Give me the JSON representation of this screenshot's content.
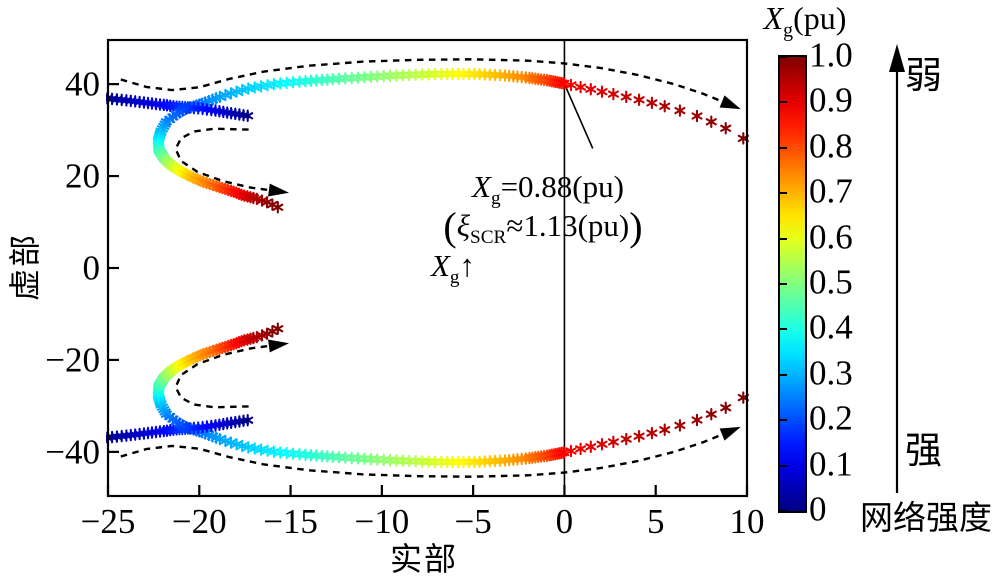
{
  "axes": {
    "xlabel": "实部",
    "ylabel": "虚部"
  },
  "annotation": {
    "var": "X",
    "var_sub": "g",
    "line1_rest": "=0.88(pu)",
    "paren_open": "(",
    "xi": "ξ",
    "xi_sub": "SCR",
    "line2_rest": "≈1.13(pu)",
    "paren_close": ")"
  },
  "xg_direction": {
    "var": "X",
    "sub": "g",
    "arrow": "↑"
  },
  "colorbar": {
    "title_var": "X",
    "title_sub": "g",
    "title_rest": "(pu)",
    "min": 0,
    "max": 1,
    "colormap": "jet",
    "tick_values": [
      1.0,
      0.9,
      0.8,
      0.7,
      0.6,
      0.5,
      0.4,
      0.3,
      0.2,
      0.1,
      0
    ],
    "tick_labels": [
      "1.0",
      "0.9",
      "0.8",
      "0.7",
      "0.6",
      "0.5",
      "0.4",
      "0.3",
      "0.2",
      "0.1",
      "0"
    ]
  },
  "strength": {
    "weak": "弱",
    "strong": "强",
    "label": "网络强度"
  },
  "chart_data": {
    "type": "scatter",
    "title": "",
    "xlabel": "实部",
    "ylabel": "虚部",
    "xlim": [
      -25,
      10
    ],
    "ylim": [
      -49.6,
      49.6
    ],
    "x_ticks": [
      -25,
      -20,
      -15,
      -10,
      -5,
      0,
      5,
      10
    ],
    "x_tick_labels": [
      "−25",
      "−20",
      "−15",
      "−10",
      "−5",
      "0",
      "5",
      "10"
    ],
    "y_ticks": [
      40,
      20,
      0,
      -20,
      -40
    ],
    "y_tick_labels": [
      "40",
      "20",
      "0",
      "−20",
      "−40"
    ],
    "grid": false,
    "marker": "asterisk",
    "colormap": "jet",
    "color_parameter": "Xg (pu) from 0 to 1",
    "zero_axis_line_x": 0,
    "stability_crossing": {
      "x": 0,
      "y": 40.1,
      "xg": 0.88
    },
    "series": [
      {
        "name": "upper-long-branch",
        "n_markers": 115,
        "points": [
          [
            -25.3,
            37.0,
            0
          ],
          [
            -24.1,
            36.5,
            0.04
          ],
          [
            -23.0,
            36.0,
            0.08
          ],
          [
            -22.0,
            35.5,
            0.12
          ],
          [
            -21.2,
            35.1,
            0.16
          ],
          [
            -20.5,
            34.9,
            0.2
          ],
          [
            -19.8,
            35.8,
            0.24
          ],
          [
            -18.9,
            37.2,
            0.28
          ],
          [
            -17.5,
            38.9,
            0.32
          ],
          [
            -15.9,
            40.0,
            0.36
          ],
          [
            -14.3,
            40.6,
            0.4
          ],
          [
            -12.6,
            41.1,
            0.45
          ],
          [
            -10.6,
            41.6,
            0.5
          ],
          [
            -8.6,
            42.0,
            0.55
          ],
          [
            -6.6,
            42.2,
            0.6
          ],
          [
            -4.9,
            42.2,
            0.65
          ],
          [
            -3.3,
            41.9,
            0.7
          ],
          [
            -2.0,
            41.4,
            0.75
          ],
          [
            -0.9,
            40.8,
            0.81
          ],
          [
            0,
            40.1,
            0.88
          ],
          [
            1.2,
            39.1,
            0.9
          ],
          [
            2.6,
            37.9,
            0.92
          ],
          [
            4.2,
            36.5,
            0.94
          ],
          [
            5.8,
            34.9,
            0.96
          ],
          [
            7.4,
            32.9,
            0.975
          ],
          [
            8.7,
            30.7,
            0.99
          ],
          [
            9.8,
            28.2,
            1
          ]
        ]
      },
      {
        "name": "upper-c-branch",
        "n_markers": 85,
        "points": [
          [
            -17.35,
            33.1,
            0
          ],
          [
            -18.3,
            33.7,
            0.05
          ],
          [
            -19.2,
            34.3,
            0.1
          ],
          [
            -20.0,
            34.7,
            0.14
          ],
          [
            -20.6,
            34.9,
            0.17
          ],
          [
            -21.2,
            33.6,
            0.21
          ],
          [
            -21.8,
            31.8,
            0.25
          ],
          [
            -22.1,
            29.7,
            0.3
          ],
          [
            -22.25,
            27.6,
            0.36
          ],
          [
            -22.2,
            25.6,
            0.43
          ],
          [
            -21.9,
            23.7,
            0.5
          ],
          [
            -21.4,
            21.9,
            0.58
          ],
          [
            -20.7,
            20.3,
            0.66
          ],
          [
            -19.9,
            18.9,
            0.73
          ],
          [
            -19.0,
            17.7,
            0.79
          ],
          [
            -18.2,
            16.7,
            0.85
          ],
          [
            -17.6,
            15.8,
            0.9
          ],
          [
            -16.9,
            15.1,
            0.95
          ],
          [
            -16.2,
            14.2,
            0.98
          ],
          [
            -15.7,
            13.2,
            1
          ]
        ]
      },
      {
        "name": "lower-long-branch",
        "n_markers": 115,
        "points": [
          [
            -25.3,
            -37.0,
            0
          ],
          [
            -24.1,
            -36.5,
            0.04
          ],
          [
            -23.0,
            -36.0,
            0.08
          ],
          [
            -22.0,
            -35.5,
            0.12
          ],
          [
            -21.2,
            -35.1,
            0.16
          ],
          [
            -20.5,
            -34.9,
            0.2
          ],
          [
            -19.8,
            -35.8,
            0.24
          ],
          [
            -18.9,
            -37.2,
            0.28
          ],
          [
            -17.5,
            -38.9,
            0.32
          ],
          [
            -15.9,
            -40.0,
            0.36
          ],
          [
            -14.3,
            -40.6,
            0.4
          ],
          [
            -12.6,
            -41.1,
            0.45
          ],
          [
            -10.6,
            -41.6,
            0.5
          ],
          [
            -8.6,
            -42.0,
            0.55
          ],
          [
            -6.6,
            -42.2,
            0.6
          ],
          [
            -4.9,
            -42.2,
            0.65
          ],
          [
            -3.3,
            -41.9,
            0.7
          ],
          [
            -2.0,
            -41.4,
            0.75
          ],
          [
            -0.9,
            -40.8,
            0.81
          ],
          [
            0,
            -40.1,
            0.88
          ],
          [
            1.2,
            -39.1,
            0.9
          ],
          [
            2.6,
            -37.9,
            0.92
          ],
          [
            4.2,
            -36.5,
            0.94
          ],
          [
            5.8,
            -34.9,
            0.96
          ],
          [
            7.4,
            -32.9,
            0.975
          ],
          [
            8.7,
            -30.7,
            0.99
          ],
          [
            9.8,
            -28.2,
            1
          ]
        ]
      },
      {
        "name": "lower-c-branch",
        "n_markers": 85,
        "points": [
          [
            -17.35,
            -33.1,
            0
          ],
          [
            -18.3,
            -33.7,
            0.05
          ],
          [
            -19.2,
            -34.3,
            0.1
          ],
          [
            -20.0,
            -34.7,
            0.14
          ],
          [
            -20.6,
            -34.9,
            0.17
          ],
          [
            -21.2,
            -33.6,
            0.21
          ],
          [
            -21.8,
            -31.8,
            0.25
          ],
          [
            -22.1,
            -29.7,
            0.3
          ],
          [
            -22.25,
            -27.6,
            0.36
          ],
          [
            -22.2,
            -25.6,
            0.43
          ],
          [
            -21.9,
            -23.7,
            0.5
          ],
          [
            -21.4,
            -21.9,
            0.58
          ],
          [
            -20.7,
            -20.3,
            0.66
          ],
          [
            -19.9,
            -18.9,
            0.73
          ],
          [
            -19.0,
            -17.7,
            0.79
          ],
          [
            -18.2,
            -16.7,
            0.85
          ],
          [
            -17.6,
            -15.8,
            0.9
          ],
          [
            -16.9,
            -15.1,
            0.95
          ],
          [
            -16.2,
            -14.2,
            0.98
          ],
          [
            -15.7,
            -13.2,
            1
          ]
        ]
      }
    ],
    "guide_arrows": [
      {
        "name": "upper-outer",
        "points": [
          [
            -24.3,
            41.0
          ],
          [
            -22.9,
            39.4
          ],
          [
            -21.5,
            38.7
          ],
          [
            -20.0,
            39.3
          ],
          [
            -18.4,
            41.1
          ],
          [
            -16.5,
            42.7
          ],
          [
            -14.0,
            44.0
          ],
          [
            -11.0,
            44.9
          ],
          [
            -8.0,
            45.3
          ],
          [
            -5.0,
            45.4
          ],
          [
            -2.0,
            45.1
          ],
          [
            0.0,
            44.5
          ],
          [
            2.0,
            43.5
          ],
          [
            4.0,
            42.0
          ],
          [
            6.0,
            40.0
          ],
          [
            7.6,
            37.9
          ],
          [
            8.9,
            35.8
          ]
        ]
      },
      {
        "name": "upper-inner",
        "points": [
          [
            -17.3,
            30.1
          ],
          [
            -19.2,
            30.3
          ],
          [
            -20.3,
            29.7
          ],
          [
            -21.0,
            28.2
          ],
          [
            -21.3,
            25.9
          ],
          [
            -21.0,
            23.3
          ],
          [
            -20.1,
            20.9
          ],
          [
            -18.7,
            18.9
          ],
          [
            -17.2,
            17.5
          ],
          [
            -15.9,
            16.8
          ]
        ]
      },
      {
        "name": "lower-outer",
        "points": [
          [
            -24.3,
            -41.0
          ],
          [
            -22.9,
            -39.4
          ],
          [
            -21.5,
            -38.7
          ],
          [
            -20.0,
            -39.3
          ],
          [
            -18.4,
            -41.1
          ],
          [
            -16.5,
            -42.7
          ],
          [
            -14.0,
            -44.0
          ],
          [
            -11.0,
            -44.9
          ],
          [
            -8.0,
            -45.3
          ],
          [
            -5.0,
            -45.4
          ],
          [
            -2.0,
            -45.1
          ],
          [
            0.0,
            -44.5
          ],
          [
            2.0,
            -43.5
          ],
          [
            4.0,
            -42.0
          ],
          [
            6.0,
            -40.0
          ],
          [
            7.6,
            -37.9
          ],
          [
            8.9,
            -35.8
          ]
        ]
      },
      {
        "name": "lower-inner",
        "points": [
          [
            -17.3,
            -30.1
          ],
          [
            -19.2,
            -30.3
          ],
          [
            -20.3,
            -29.7
          ],
          [
            -21.0,
            -28.2
          ],
          [
            -21.3,
            -25.9
          ],
          [
            -21.0,
            -23.3
          ],
          [
            -20.1,
            -20.9
          ],
          [
            -18.7,
            -18.9
          ],
          [
            -17.2,
            -17.5
          ],
          [
            -15.9,
            -16.8
          ]
        ]
      }
    ],
    "annotation_callout": {
      "from": [
        0.05,
        39.6
      ],
      "to": [
        1.55,
        26.0
      ]
    }
  }
}
